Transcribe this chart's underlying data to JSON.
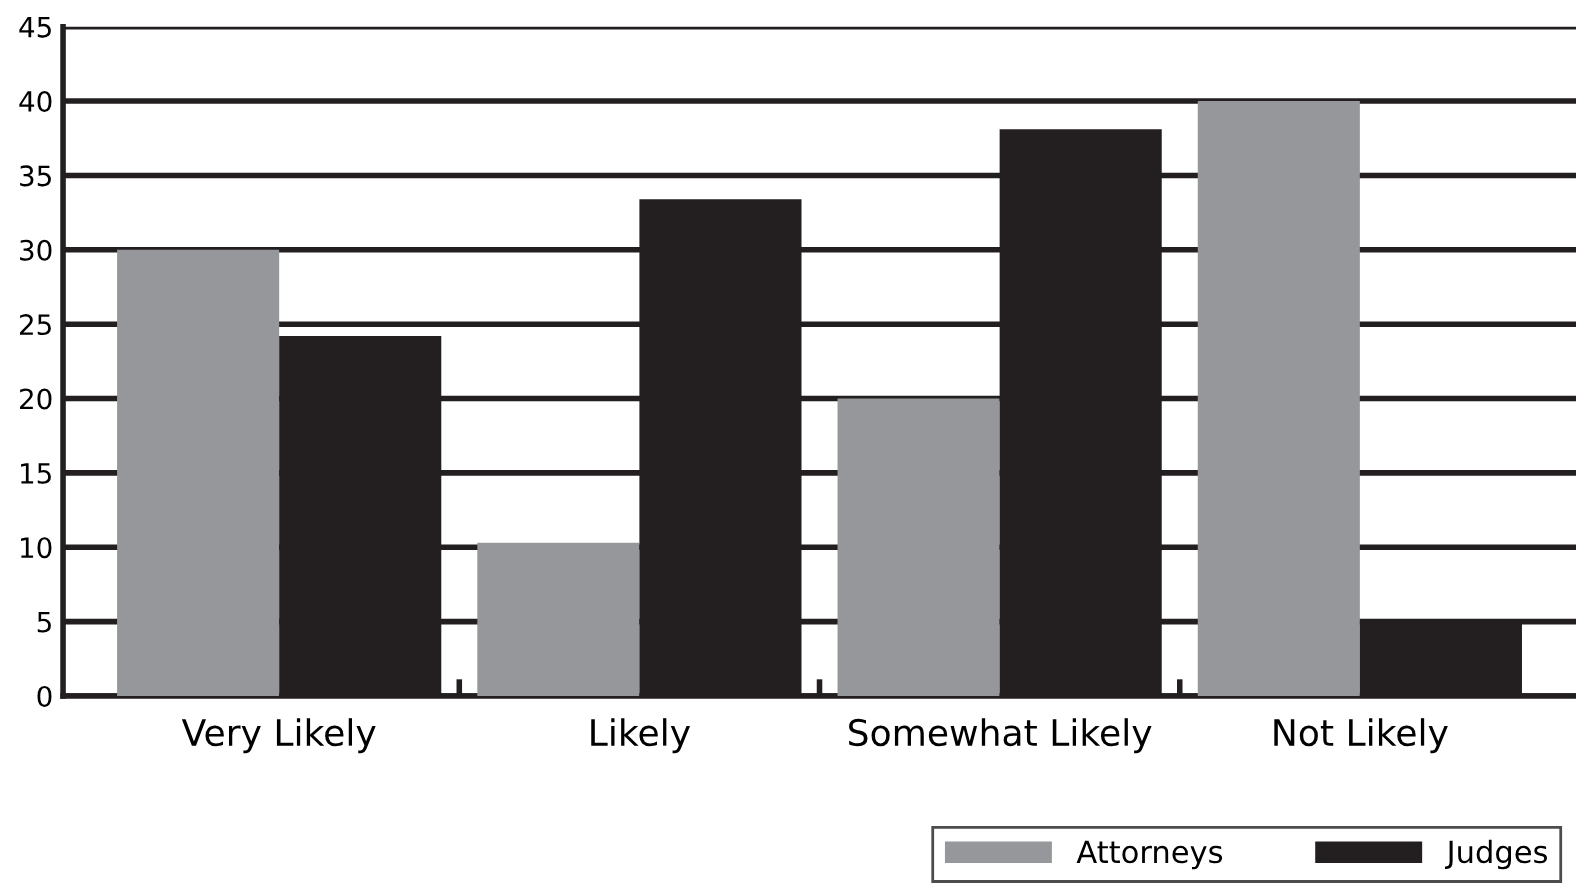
{
  "chart_data": {
    "type": "bar",
    "categories": [
      "Very Likely",
      "Likely",
      "Somewhat Likely",
      "Not Likely"
    ],
    "series": [
      {
        "name": "Attorneys",
        "color": "#96979a",
        "values": [
          30,
          10.3,
          20,
          40
        ]
      },
      {
        "name": "Judges",
        "color": "#231f20",
        "values": [
          24.2,
          33.4,
          38.1,
          5
        ]
      }
    ],
    "ylim": [
      0,
      45
    ],
    "yticks": [
      0,
      5,
      10,
      15,
      20,
      25,
      30,
      35,
      40,
      45
    ],
    "grid": "y",
    "legend": "bottom right"
  }
}
